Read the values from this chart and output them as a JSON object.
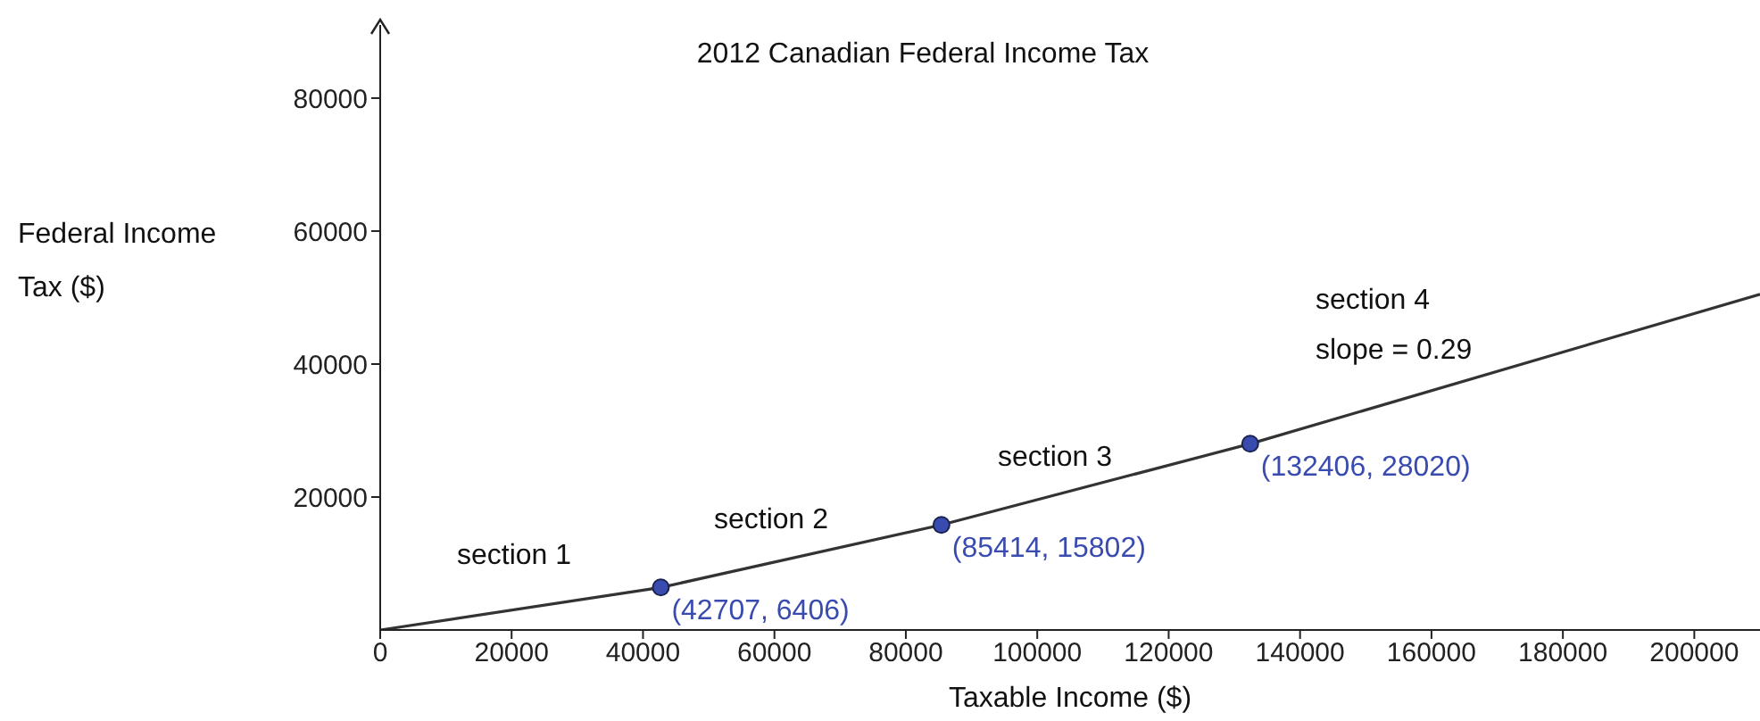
{
  "chart_data": {
    "type": "line",
    "title": "2012 Canadian Federal Income Tax",
    "xlabel": "Taxable Income ($)",
    "xlim": [
      0,
      210000
    ],
    "ylim": [
      0,
      91000
    ],
    "xticks": [
      0,
      20000,
      40000,
      60000,
      80000,
      100000,
      120000,
      140000,
      160000,
      180000,
      200000
    ],
    "yticks": [
      20000,
      40000,
      60000,
      80000
    ],
    "grid": false,
    "legend": false,
    "marker": "none",
    "line_style": "solid",
    "series": [
      {
        "color": "#333333",
        "x": [
          0,
          42700,
          85400,
          132400,
          210000
        ],
        "values": [
          0,
          6400,
          15800,
          28000,
          50500
        ]
      },
      {
        "type": "scatter",
        "color": "#3a4bb0",
        "marker": "circle",
        "x": [
          42707,
          85414,
          132406
        ],
        "values": [
          6406,
          15802,
          28020
        ],
        "value_labels": [
          "(42707, 6406)",
          "(85414, 15802)",
          "(132406, 28020)"
        ]
      }
    ],
    "annotations": [
      "Federal Income Tax ($)",
      "section 1",
      "section 2",
      "section 3",
      "section 4",
      "slope = 0.29"
    ]
  }
}
